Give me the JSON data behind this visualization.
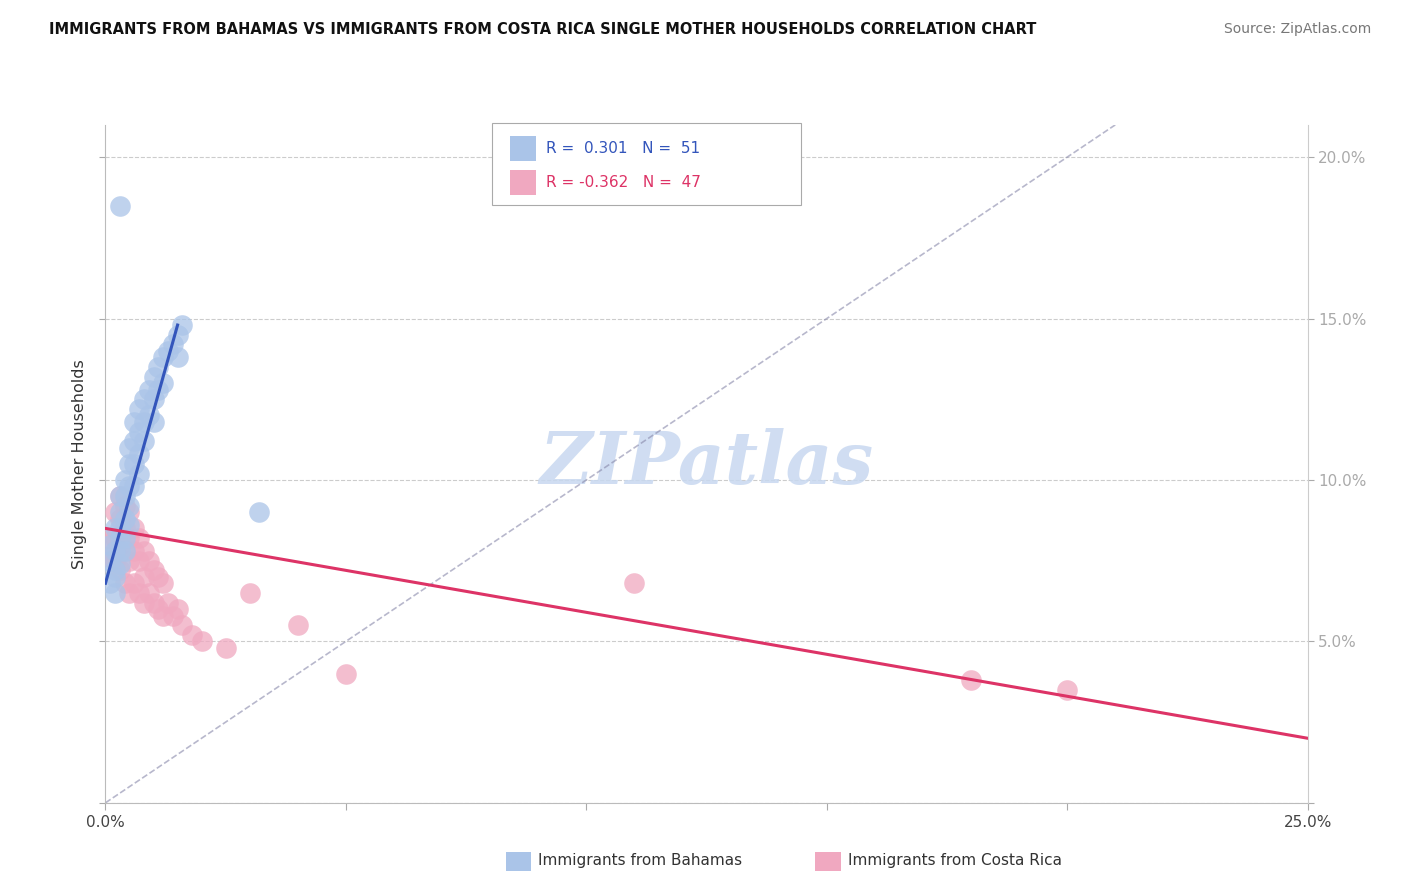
{
  "title": "IMMIGRANTS FROM BAHAMAS VS IMMIGRANTS FROM COSTA RICA SINGLE MOTHER HOUSEHOLDS CORRELATION CHART",
  "source": "Source: ZipAtlas.com",
  "ylabel": "Single Mother Households",
  "xlim": [
    0.0,
    0.25
  ],
  "ylim": [
    0.0,
    0.21
  ],
  "xtick_positions": [
    0.0,
    0.05,
    0.1,
    0.15,
    0.2,
    0.25
  ],
  "xtick_labels": [
    "0.0%",
    "",
    "",
    "",
    "",
    "25.0%"
  ],
  "right_ytick_positions": [
    0.0,
    0.05,
    0.1,
    0.15,
    0.2
  ],
  "right_ytick_labels": [
    "",
    "5.0%",
    "10.0%",
    "15.0%",
    "20.0%"
  ],
  "color_blue": "#aac4e8",
  "color_pink": "#f0a8c0",
  "line_blue": "#3355bb",
  "line_pink": "#dd3366",
  "line_dashed_color": "#8888aa",
  "watermark_text": "ZIPatlas",
  "watermark_color": "#c8d8f0",
  "legend_r1_label": "R =  0.301   N =  51",
  "legend_r2_label": "R = -0.362   N =  47",
  "legend_r1_color": "#3355bb",
  "legend_r2_color": "#dd3366",
  "bottom_label_blue": "Immigrants from Bahamas",
  "bottom_label_pink": "Immigrants from Costa Rica",
  "bahamas_x": [
    0.001,
    0.001,
    0.001,
    0.002,
    0.002,
    0.002,
    0.002,
    0.002,
    0.003,
    0.003,
    0.003,
    0.003,
    0.003,
    0.003,
    0.004,
    0.004,
    0.004,
    0.004,
    0.004,
    0.005,
    0.005,
    0.005,
    0.005,
    0.005,
    0.006,
    0.006,
    0.006,
    0.006,
    0.007,
    0.007,
    0.007,
    0.007,
    0.008,
    0.008,
    0.008,
    0.009,
    0.009,
    0.01,
    0.01,
    0.01,
    0.011,
    0.011,
    0.012,
    0.012,
    0.013,
    0.014,
    0.015,
    0.015,
    0.016,
    0.032,
    0.003
  ],
  "bahamas_y": [
    0.08,
    0.075,
    0.068,
    0.085,
    0.078,
    0.072,
    0.07,
    0.065,
    0.095,
    0.09,
    0.085,
    0.082,
    0.078,
    0.074,
    0.1,
    0.095,
    0.088,
    0.082,
    0.078,
    0.11,
    0.105,
    0.098,
    0.092,
    0.086,
    0.118,
    0.112,
    0.105,
    0.098,
    0.122,
    0.115,
    0.108,
    0.102,
    0.125,
    0.118,
    0.112,
    0.128,
    0.12,
    0.132,
    0.125,
    0.118,
    0.135,
    0.128,
    0.138,
    0.13,
    0.14,
    0.142,
    0.145,
    0.138,
    0.148,
    0.09,
    0.185
  ],
  "costarica_x": [
    0.001,
    0.001,
    0.002,
    0.002,
    0.002,
    0.003,
    0.003,
    0.003,
    0.003,
    0.004,
    0.004,
    0.004,
    0.004,
    0.005,
    0.005,
    0.005,
    0.005,
    0.006,
    0.006,
    0.006,
    0.007,
    0.007,
    0.007,
    0.008,
    0.008,
    0.008,
    0.009,
    0.009,
    0.01,
    0.01,
    0.011,
    0.011,
    0.012,
    0.012,
    0.013,
    0.014,
    0.015,
    0.016,
    0.018,
    0.02,
    0.025,
    0.03,
    0.04,
    0.05,
    0.11,
    0.18,
    0.2
  ],
  "costarica_y": [
    0.082,
    0.076,
    0.09,
    0.082,
    0.075,
    0.095,
    0.088,
    0.08,
    0.072,
    0.092,
    0.085,
    0.078,
    0.068,
    0.09,
    0.082,
    0.075,
    0.065,
    0.085,
    0.078,
    0.068,
    0.082,
    0.075,
    0.065,
    0.078,
    0.07,
    0.062,
    0.075,
    0.065,
    0.072,
    0.062,
    0.07,
    0.06,
    0.068,
    0.058,
    0.062,
    0.058,
    0.06,
    0.055,
    0.052,
    0.05,
    0.048,
    0.065,
    0.055,
    0.04,
    0.068,
    0.038,
    0.035
  ],
  "blue_trend_x": [
    0.0,
    0.015
  ],
  "blue_trend_y": [
    0.068,
    0.148
  ],
  "pink_trend_x": [
    0.0,
    0.25
  ],
  "pink_trend_y": [
    0.085,
    0.02
  ],
  "dash_line_x": [
    0.0,
    0.21
  ],
  "dash_line_y": [
    0.0,
    0.21
  ]
}
